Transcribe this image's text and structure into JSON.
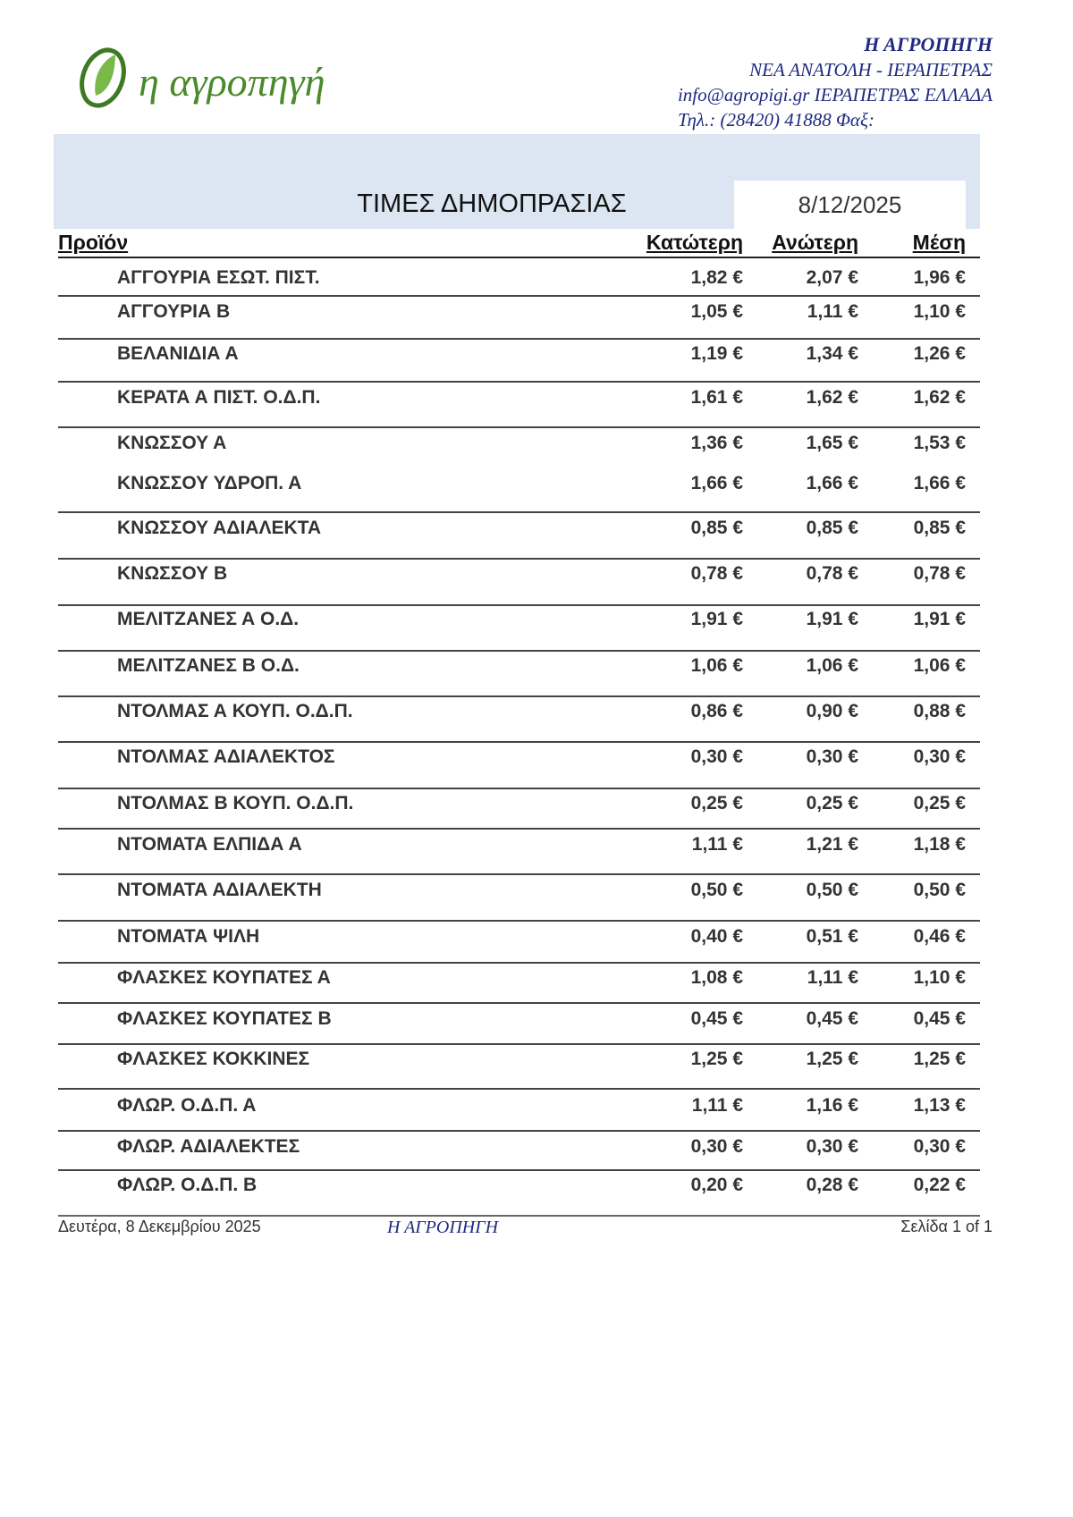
{
  "logo": {
    "text": "η αγροπηγή",
    "color": "#4a8a2a"
  },
  "company": {
    "name": "Η ΑΓΡΟΠΗΓΗ",
    "address": "ΝΕΑ ΑΝΑΤΟΛΗ  -  ΙΕΡΑΠΕΤΡΑΣ",
    "email_line": "info@agropigi.gr  ΙΕΡΑΠΕΤΡΑΣ  ΕΛΛΑΔΑ",
    "phone_line": "Τηλ.: (28420)  41888  Φαξ:"
  },
  "title": "ΤΙΜΕΣ ΔΗΜΟΠΡΑΣΙΑΣ",
  "date": "8/12/2025",
  "columns": {
    "product": "Προϊόν",
    "low": "Κατώτερη",
    "high": "Ανώτερη",
    "avg": "Μέση"
  },
  "rows": [
    {
      "product": "ΑΓΓΟΥΡΙΑ ΕΣΩΤ. ΠΙΣΤ.",
      "low": "1,82 €",
      "high": "2,07 €",
      "avg": "1,96 €"
    },
    {
      "product": "ΑΓΓΟΥΡΙΑ Β",
      "low": "1,05 €",
      "high": "1,11 €",
      "avg": "1,10 €"
    },
    {
      "product": "ΒΕΛΑΝΙΔΙΑ Α",
      "low": "1,19 €",
      "high": "1,34 €",
      "avg": "1,26 €"
    },
    {
      "product": "ΚΕΡΑΤΑ Α  ΠΙΣΤ. Ο.Δ.Π.",
      "low": "1,61 €",
      "high": "1,62 €",
      "avg": "1,62 €"
    },
    {
      "product": "ΚΝΩΣΣΟΥ Α",
      "low": "1,36 €",
      "high": "1,65 €",
      "avg": "1,53 €"
    },
    {
      "product": "ΚΝΩΣΣΟΥ ΥΔΡΟΠ. Α",
      "low": "1,66 €",
      "high": "1,66 €",
      "avg": "1,66 €"
    },
    {
      "product": "ΚΝΩΣΣΟΥ  ΑΔΙΑΛΕΚΤΑ",
      "low": "0,85 €",
      "high": "0,85 €",
      "avg": "0,85 €"
    },
    {
      "product": "ΚΝΩΣΣΟΥ Β",
      "low": "0,78 €",
      "high": "0,78 €",
      "avg": "0,78 €"
    },
    {
      "product": "ΜΕΛΙΤΖΑΝΕΣ Α Ο.Δ.",
      "low": "1,91 €",
      "high": "1,91 €",
      "avg": "1,91 €"
    },
    {
      "product": "ΜΕΛΙΤΖΑΝΕΣ Β Ο.Δ.",
      "low": "1,06 €",
      "high": "1,06 €",
      "avg": "1,06 €"
    },
    {
      "product": "ΝΤΟΛΜΑΣ Α ΚΟΥΠ. Ο.Δ.Π.",
      "low": "0,86 €",
      "high": "0,90 €",
      "avg": "0,88 €"
    },
    {
      "product": "ΝΤΟΛΜΑΣ ΑΔΙΑΛΕΚΤΟΣ",
      "low": "0,30 €",
      "high": "0,30 €",
      "avg": "0,30 €"
    },
    {
      "product": "ΝΤΟΛΜΑΣ Β ΚΟΥΠ. Ο.Δ.Π.",
      "low": "0,25 €",
      "high": "0,25 €",
      "avg": "0,25 €"
    },
    {
      "product": "ΝΤΟΜΑΤΑ ΕΛΠΙΔΑ Α",
      "low": "1,11 €",
      "high": "1,21 €",
      "avg": "1,18 €"
    },
    {
      "product": "ΝΤΟΜΑΤΑ ΑΔΙΑΛΕΚΤΗ",
      "low": "0,50 €",
      "high": "0,50 €",
      "avg": "0,50 €"
    },
    {
      "product": "ΝΤΟΜΑΤΑ ΨΙΛΗ",
      "low": "0,40 €",
      "high": "0,51 €",
      "avg": "0,46 €"
    },
    {
      "product": "ΦΛΑΣΚΕΣ ΚΟΥΠΑΤΕΣ Α",
      "low": "1,08 €",
      "high": "1,11 €",
      "avg": "1,10 €"
    },
    {
      "product": "ΦΛΑΣΚΕΣ ΚΟΥΠΑΤΕΣ Β",
      "low": "0,45 €",
      "high": "0,45 €",
      "avg": "0,45 €"
    },
    {
      "product": "ΦΛΑΣΚΕΣ ΚΟΚΚΙΝΕΣ",
      "low": "1,25 €",
      "high": "1,25 €",
      "avg": "1,25 €"
    },
    {
      "product": "ΦΛΩΡ. Ο.Δ.Π. Α",
      "low": "1,11 €",
      "high": "1,16 €",
      "avg": "1,13 €"
    },
    {
      "product": "ΦΛΩΡ. ΑΔΙΑΛΕΚΤΕΣ",
      "low": "0,30 €",
      "high": "0,30 €",
      "avg": "0,30 €"
    },
    {
      "product": "ΦΛΩΡ. Ο.Δ.Π. Β",
      "low": "0,20 €",
      "high": "0,28 €",
      "avg": "0,22 €"
    }
  ],
  "footer": {
    "date": "Δευτέρα, 8 Δεκεμβρίου 2025",
    "company": "Η ΑΓΡΟΠΗΓΗ",
    "page": "Σελίδα 1 of 1"
  }
}
